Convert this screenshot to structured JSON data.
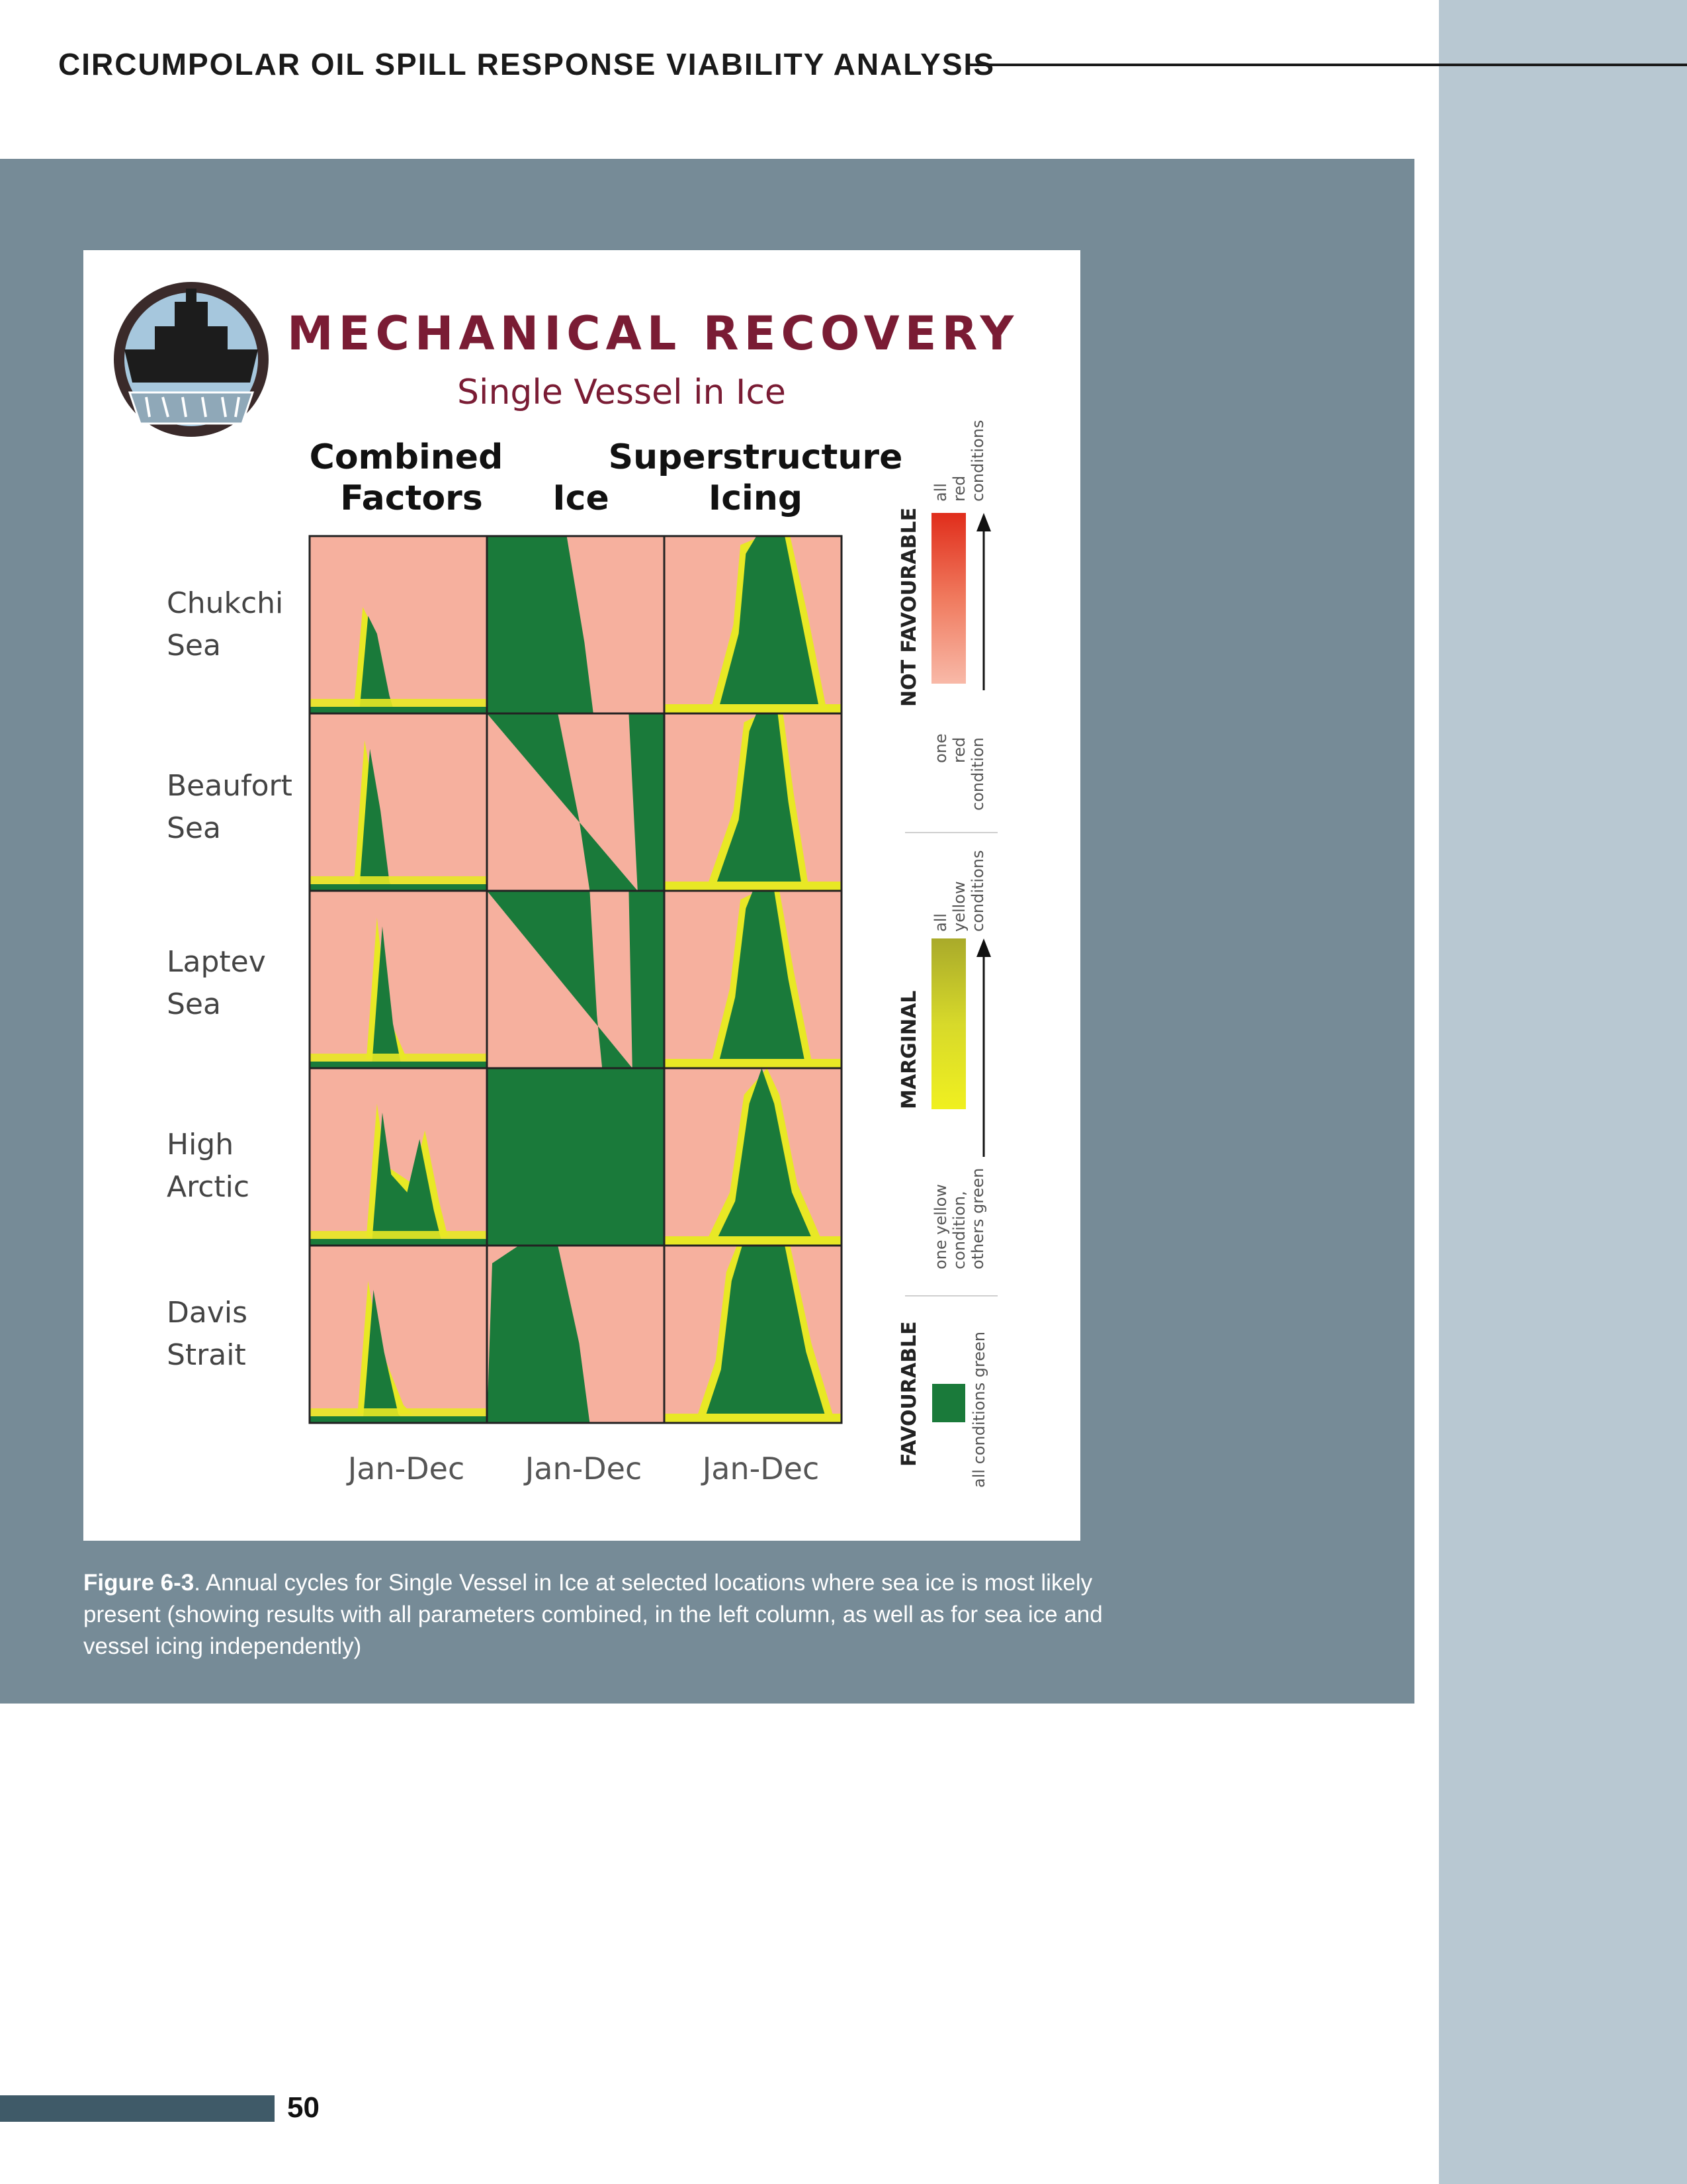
{
  "header": {
    "title": "CIRCUMPOLAR OIL SPILL RESPONSE VIABILITY ANALYSIS"
  },
  "figure": {
    "title": "MECHANICAL RECOVERY",
    "subtitle": "Single Vessel in Ice",
    "columns": [
      {
        "line1": "Combined",
        "line2": "Factors"
      },
      {
        "line1": "",
        "line2": "Ice"
      },
      {
        "line1": "Superstructure",
        "line2": "Icing"
      }
    ],
    "rows": [
      {
        "line1": "Chukchi",
        "line2": "Sea"
      },
      {
        "line1": "Beaufort",
        "line2": "Sea"
      },
      {
        "line1": "Laptev",
        "line2": "Sea"
      },
      {
        "line1": "High",
        "line2": "Arctic"
      },
      {
        "line1": "Davis",
        "line2": "Strait"
      }
    ],
    "xlabels": [
      "Jan-Dec",
      "Jan-Dec",
      "Jan-Dec"
    ],
    "legend": {
      "not_favourable": "NOT FAVOURABLE",
      "nf_top": [
        "all",
        "red",
        "conditions"
      ],
      "nf_bottom": [
        "one",
        "red",
        "condition"
      ],
      "marginal": "MARGINAL",
      "m_top": [
        "all",
        "yellow",
        "conditions"
      ],
      "m_bottom": [
        "one yellow",
        "condition,",
        "others green"
      ],
      "favourable": "FAVOURABLE",
      "f_bottom": "all conditions green"
    },
    "colors": {
      "green": "#1a7a3a",
      "salmon": "#f6b09e",
      "yellow": "#e8e825",
      "title": "#7a1c34",
      "red_dark": "#e02d1b",
      "olive": "#a9aa2a"
    }
  },
  "caption": {
    "label": "Figure 6-3",
    "text": ". Annual cycles for Single Vessel in Ice at selected locations where sea ice is most likely present (showing results with all parameters combined, in the left column, as well as for sea ice and vessel icing independently)"
  },
  "page_number": "50"
}
